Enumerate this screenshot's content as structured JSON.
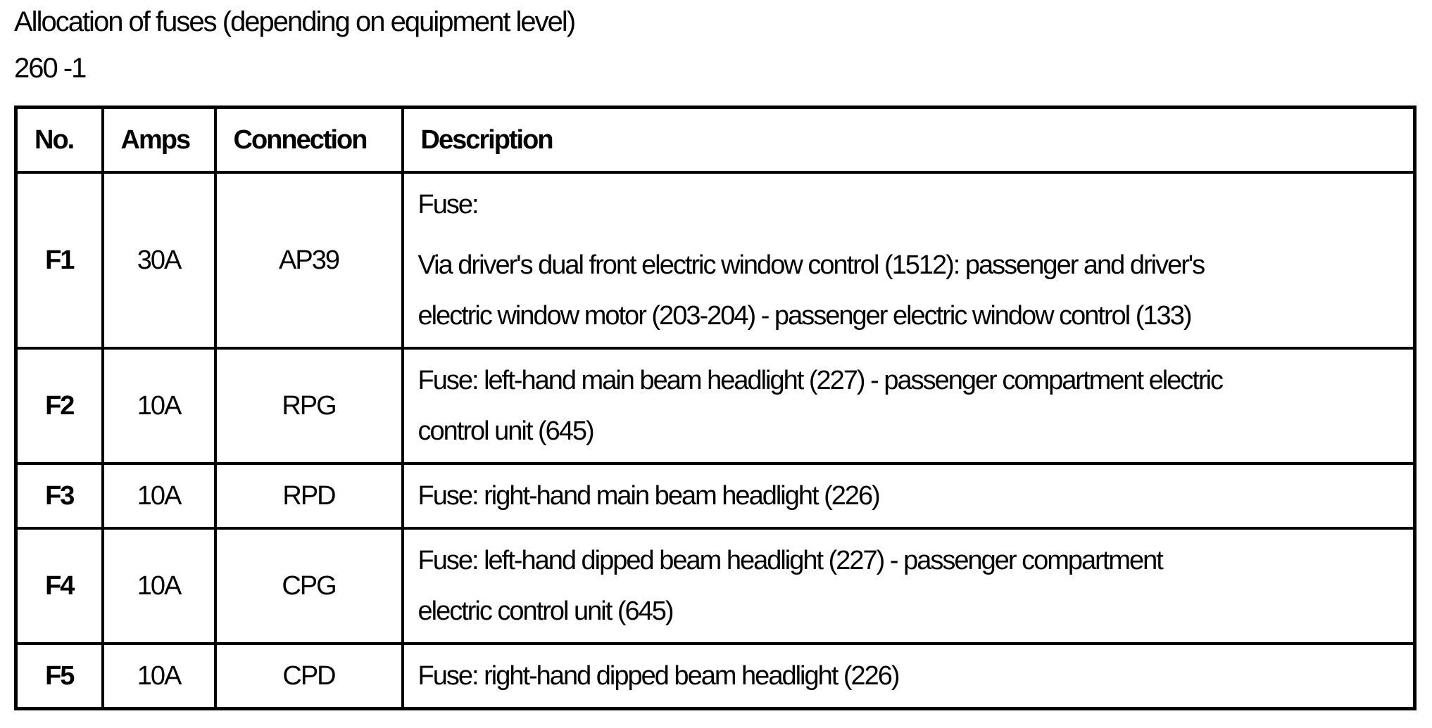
{
  "page": {
    "title": "Allocation of fuses (depending on equipment level)",
    "subtitle": "260 -1"
  },
  "table": {
    "columns": [
      {
        "key": "no",
        "label": "No."
      },
      {
        "key": "amps",
        "label": "Amps"
      },
      {
        "key": "connection",
        "label": "Connection"
      },
      {
        "key": "description",
        "label": "Description"
      }
    ],
    "rows": [
      {
        "no": "F1",
        "amps": "30A",
        "connection": "AP39",
        "description": [
          "Fuse:",
          "Via driver's dual front electric window control (1512): passenger and driver's\nelectric window motor (203-204) - passenger electric window control (133)"
        ]
      },
      {
        "no": "F2",
        "amps": "10A",
        "connection": "RPG",
        "description": [
          "Fuse: left-hand main beam headlight (227) - passenger compartment electric\ncontrol unit (645)"
        ]
      },
      {
        "no": "F3",
        "amps": "10A",
        "connection": "RPD",
        "description": [
          "Fuse: right-hand main beam headlight (226)"
        ]
      },
      {
        "no": "F4",
        "amps": "10A",
        "connection": "CPG",
        "description": [
          "Fuse: left-hand dipped beam headlight (227) - passenger compartment\nelectric control unit (645)"
        ]
      },
      {
        "no": "F5",
        "amps": "10A",
        "connection": "CPD",
        "description": [
          "Fuse: right-hand dipped beam headlight (226)"
        ]
      }
    ]
  }
}
